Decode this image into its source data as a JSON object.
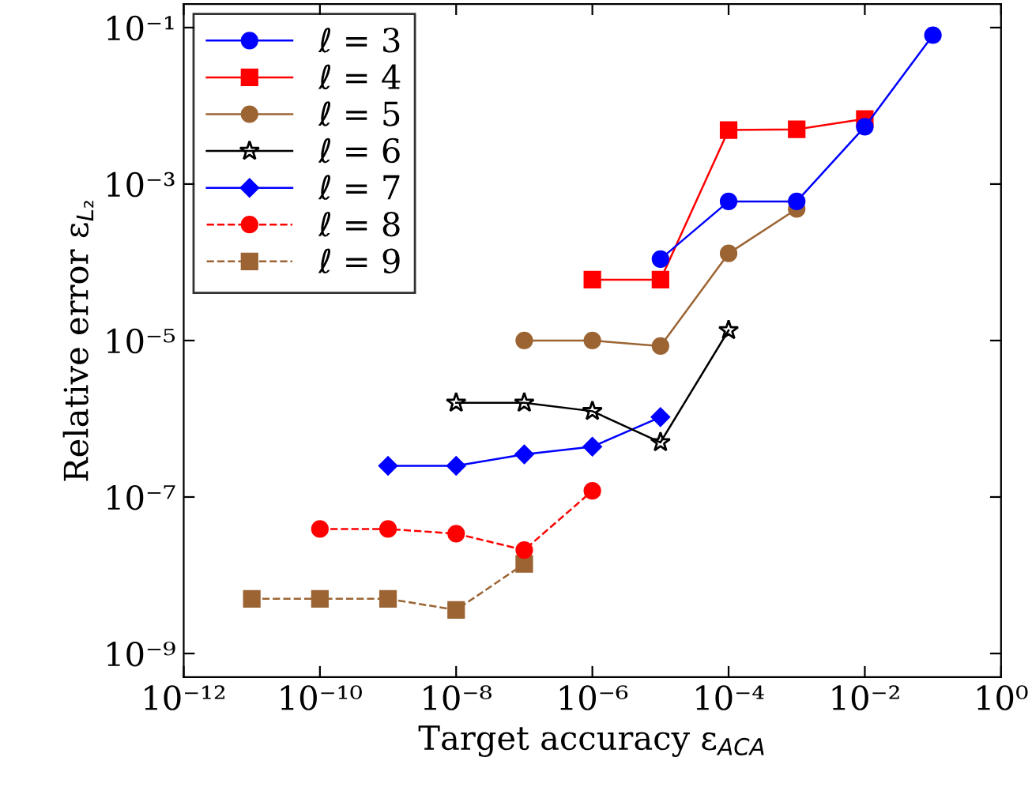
{
  "chart_data": {
    "type": "line",
    "xlabel": "Target accuracy ε$_{ACA}$",
    "ylabel": "Relative error ε$_{L₂}$",
    "log": "xy",
    "xlim": [
      1e-12,
      1
    ],
    "ylim": [
      5e-10,
      0.2
    ],
    "xticks": [
      {
        "value": 1e-12,
        "label": "10⁻¹²"
      },
      {
        "value": 1e-10,
        "label": "10⁻¹⁰"
      },
      {
        "value": 1e-08,
        "label": "10⁻⁸"
      },
      {
        "value": 1e-06,
        "label": "10⁻⁶"
      },
      {
        "value": 0.0001,
        "label": "10⁻⁴"
      },
      {
        "value": 0.01,
        "label": "10⁻²"
      },
      {
        "value": 1,
        "label": "10⁰"
      }
    ],
    "yticks": [
      {
        "value": 1e-09,
        "label": "10⁻⁹"
      },
      {
        "value": 1e-07,
        "label": "10⁻⁷"
      },
      {
        "value": 1e-05,
        "label": "10⁻⁵"
      },
      {
        "value": 0.001,
        "label": "10⁻³"
      },
      {
        "value": 0.1,
        "label": "10⁻¹"
      }
    ],
    "legend": "top left",
    "grid": false,
    "series": [
      {
        "name": "ℓ = 3",
        "color": "#0000ff",
        "marker": "circle",
        "line_style": "solid",
        "x": [
          1e-05,
          0.0001,
          0.001,
          0.01,
          0.1
        ],
        "values": [
          0.00011,
          0.0006,
          0.0006,
          0.0054,
          0.08
        ]
      },
      {
        "name": "ℓ = 4",
        "color": "#ff0000",
        "marker": "square",
        "line_style": "solid",
        "x": [
          1e-06,
          1e-05,
          0.0001,
          0.001,
          0.01
        ],
        "values": [
          6e-05,
          6e-05,
          0.0049,
          0.005,
          0.0068
        ]
      },
      {
        "name": "ℓ = 5",
        "color": "#9c6433",
        "marker": "circle",
        "line_style": "solid",
        "x": [
          1e-07,
          1e-06,
          1e-05,
          0.0001,
          0.001
        ],
        "values": [
          1e-05,
          1e-05,
          8.5e-06,
          0.00013,
          0.00048
        ]
      },
      {
        "name": "ℓ = 6",
        "color": "#000000",
        "marker": "star",
        "line_style": "solid",
        "x": [
          1e-08,
          1e-07,
          1e-06,
          1e-05,
          0.0001
        ],
        "values": [
          1.6e-06,
          1.6e-06,
          1.25e-06,
          5e-07,
          1.35e-05
        ]
      },
      {
        "name": "ℓ = 7",
        "color": "#0000ff",
        "marker": "diamond",
        "line_style": "solid",
        "x": [
          1e-09,
          1e-08,
          1e-07,
          1e-06,
          1e-05
        ],
        "values": [
          2.5e-07,
          2.5e-07,
          3.5e-07,
          4.4e-07,
          1.05e-06
        ]
      },
      {
        "name": "ℓ = 8",
        "color": "#ff0000",
        "marker": "circle",
        "line_style": "dashed",
        "x": [
          1e-10,
          1e-09,
          1e-08,
          1e-07,
          1e-06
        ],
        "values": [
          3.9e-08,
          3.9e-08,
          3.4e-08,
          2.1e-08,
          1.2e-07
        ]
      },
      {
        "name": "ℓ = 9",
        "color": "#9c6433",
        "marker": "square",
        "line_style": "dashed",
        "x": [
          1e-11,
          1e-10,
          1e-09,
          1e-08,
          1e-07
        ],
        "values": [
          5e-09,
          5e-09,
          5e-09,
          3.6e-09,
          1.4e-08
        ]
      }
    ]
  }
}
